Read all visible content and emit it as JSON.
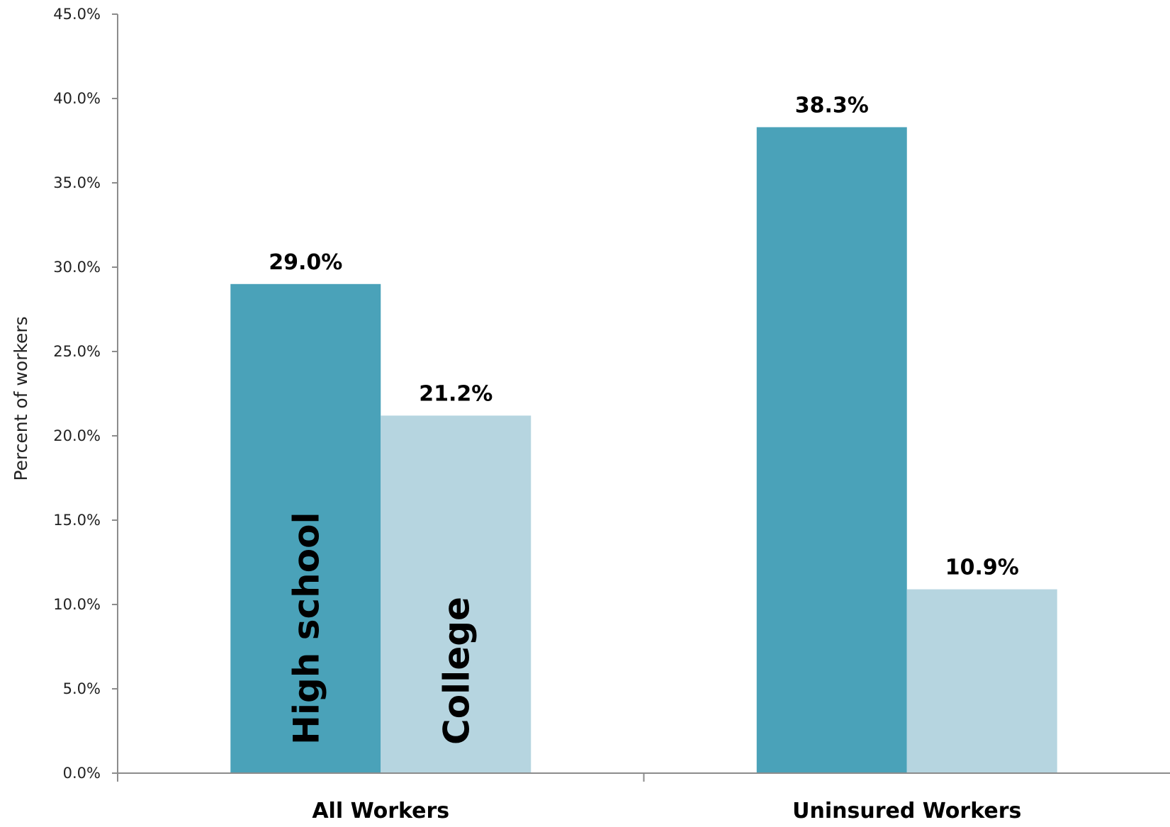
{
  "chart_data": {
    "type": "bar",
    "title": "",
    "xlabel": "",
    "ylabel": "Percent of workers",
    "ylim": [
      0,
      45
    ],
    "yticks": [
      "0.0%",
      "5.0%",
      "10.0%",
      "15.0%",
      "20.0%",
      "25.0%",
      "30.0%",
      "35.0%",
      "40.0%",
      "45.0%"
    ],
    "categories": [
      "All Workers",
      "Uninsured Workers"
    ],
    "series": [
      {
        "name": "High school",
        "color": "#4AA2B9",
        "values": [
          29.0,
          38.3
        ],
        "labels": [
          "29.0%",
          "38.3%"
        ]
      },
      {
        "name": "College",
        "color": "#B6D5E0",
        "values": [
          21.2,
          10.9
        ],
        "labels": [
          "21.2%",
          "10.9%"
        ]
      }
    ],
    "grid": false,
    "legend": "inside first group of bars (rotated labels)"
  }
}
